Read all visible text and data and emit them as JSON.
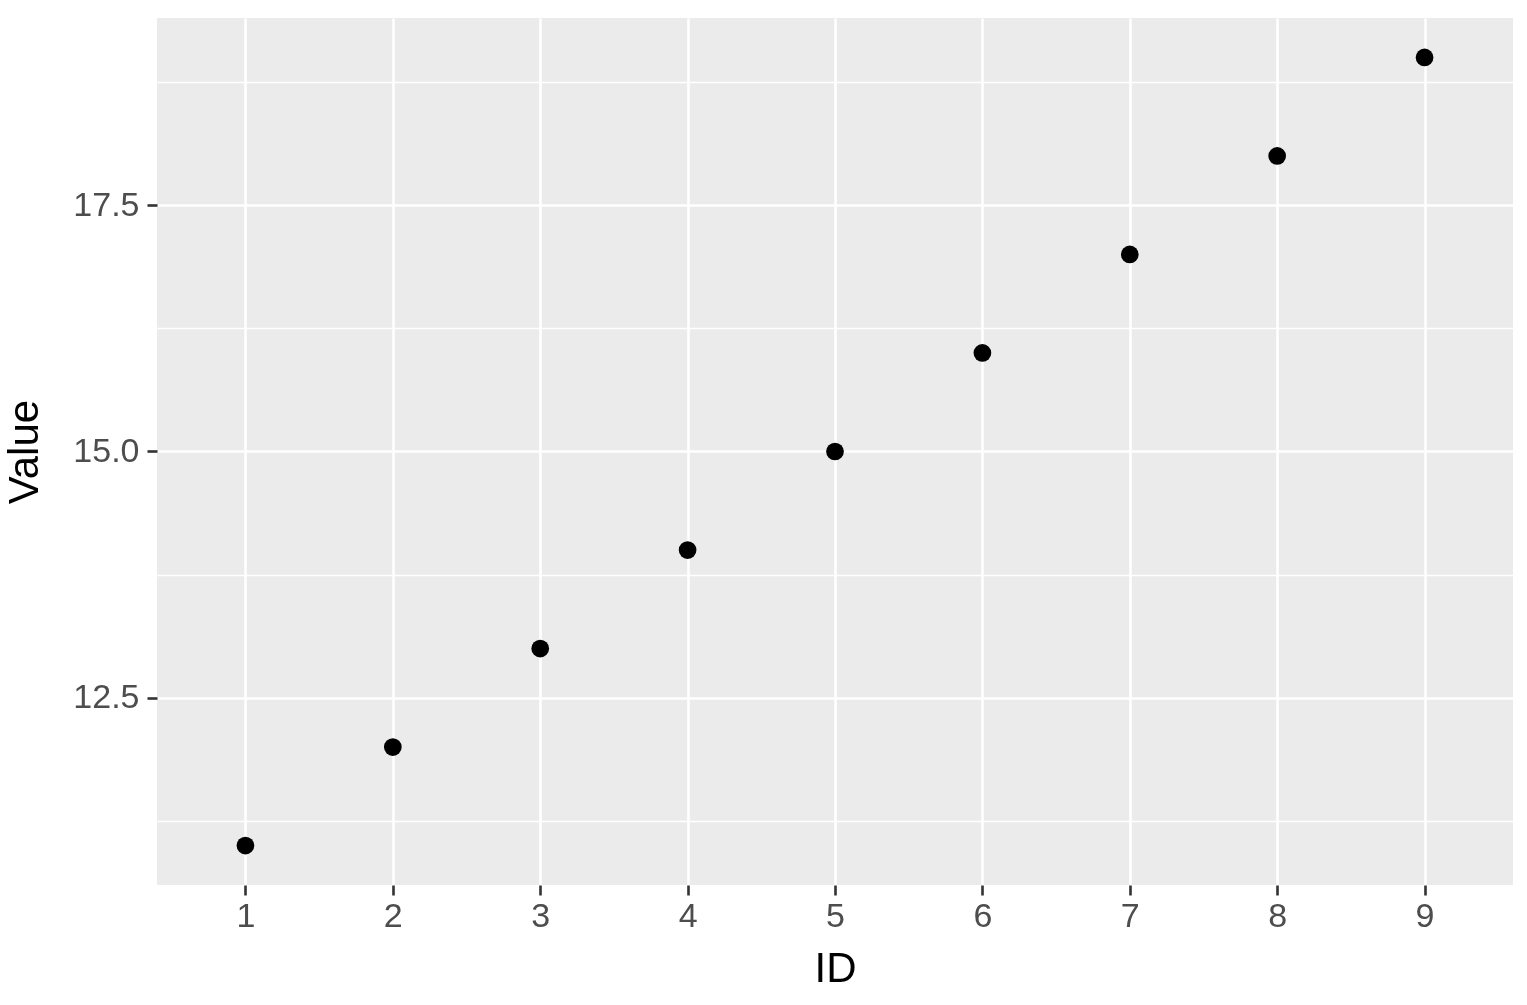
{
  "chart_data": {
    "type": "scatter",
    "categories": [
      "1",
      "2",
      "3",
      "4",
      "5",
      "6",
      "7",
      "8",
      "9"
    ],
    "values": [
      11,
      12,
      13,
      14,
      15,
      16,
      17,
      18,
      19
    ],
    "color": "#000000",
    "marker": "circle",
    "xlabel": "ID",
    "ylabel": "Value",
    "ylim": [
      10.6,
      19.4
    ],
    "yticks": [
      12.5,
      {
        "value": 15,
        "label": "15.0"
      },
      17.5
    ],
    "grid": true
  }
}
